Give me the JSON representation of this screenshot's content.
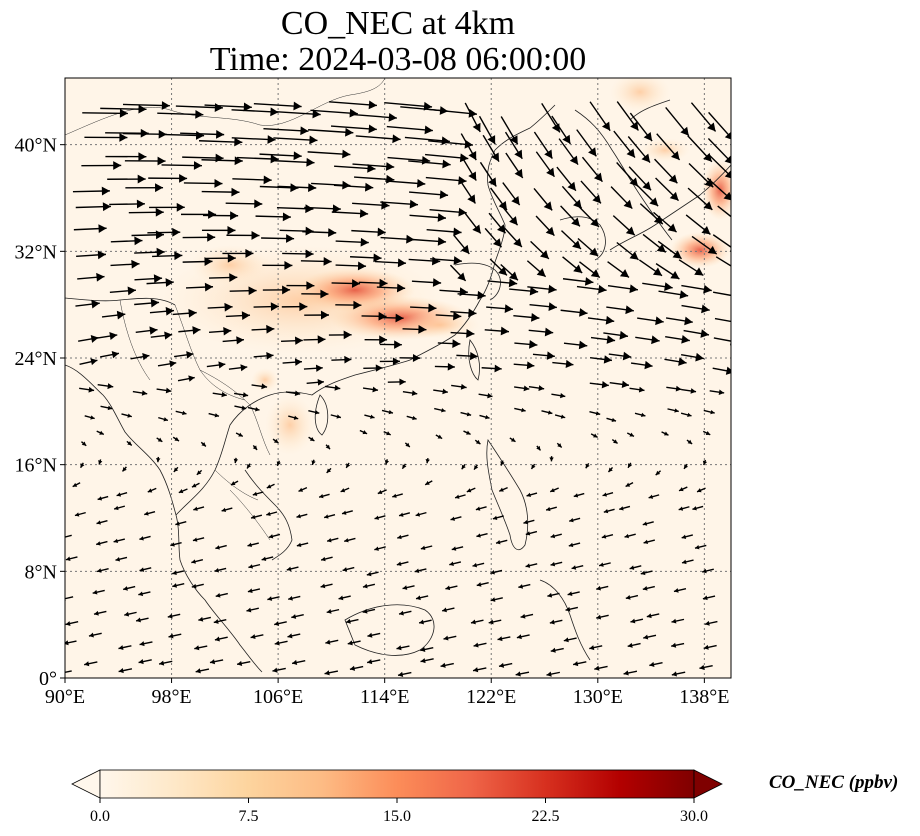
{
  "figure": {
    "title_line1": "CO_NEC at 4km",
    "title_line2": "Time: 2024-03-08 06:00:00"
  },
  "map": {
    "lon_range": [
      90,
      140
    ],
    "lat_range": [
      0,
      45
    ],
    "projection": "PlateCarree",
    "gridlines": "dotted",
    "x_ticks": [
      {
        "value": 90,
        "label": "90°E"
      },
      {
        "value": 98,
        "label": "98°E"
      },
      {
        "value": 106,
        "label": "106°E"
      },
      {
        "value": 114,
        "label": "114°E"
      },
      {
        "value": 122,
        "label": "122°E"
      },
      {
        "value": 130,
        "label": "130°E"
      },
      {
        "value": 138,
        "label": "138°E"
      }
    ],
    "y_ticks": [
      {
        "value": 0,
        "label": "0°"
      },
      {
        "value": 8,
        "label": "8°N"
      },
      {
        "value": 16,
        "label": "16°N"
      },
      {
        "value": 24,
        "label": "24°N"
      },
      {
        "value": 32,
        "label": "32°N"
      },
      {
        "value": 40,
        "label": "40°N"
      }
    ],
    "overlay": "wind vectors"
  },
  "colorbar": {
    "label": "CO_NEC (ppbv)",
    "min": 0,
    "max": 30,
    "extend": "both",
    "colormap": "OrRd",
    "ticks": [
      "0.0",
      "7.5",
      "15.0",
      "22.5",
      "30.0"
    ],
    "colors": [
      "#fff7ec",
      "#fee8c8",
      "#fdd49e",
      "#fdbb84",
      "#fc8d59",
      "#ef6548",
      "#d7301f",
      "#b30000",
      "#7f0000"
    ]
  }
}
